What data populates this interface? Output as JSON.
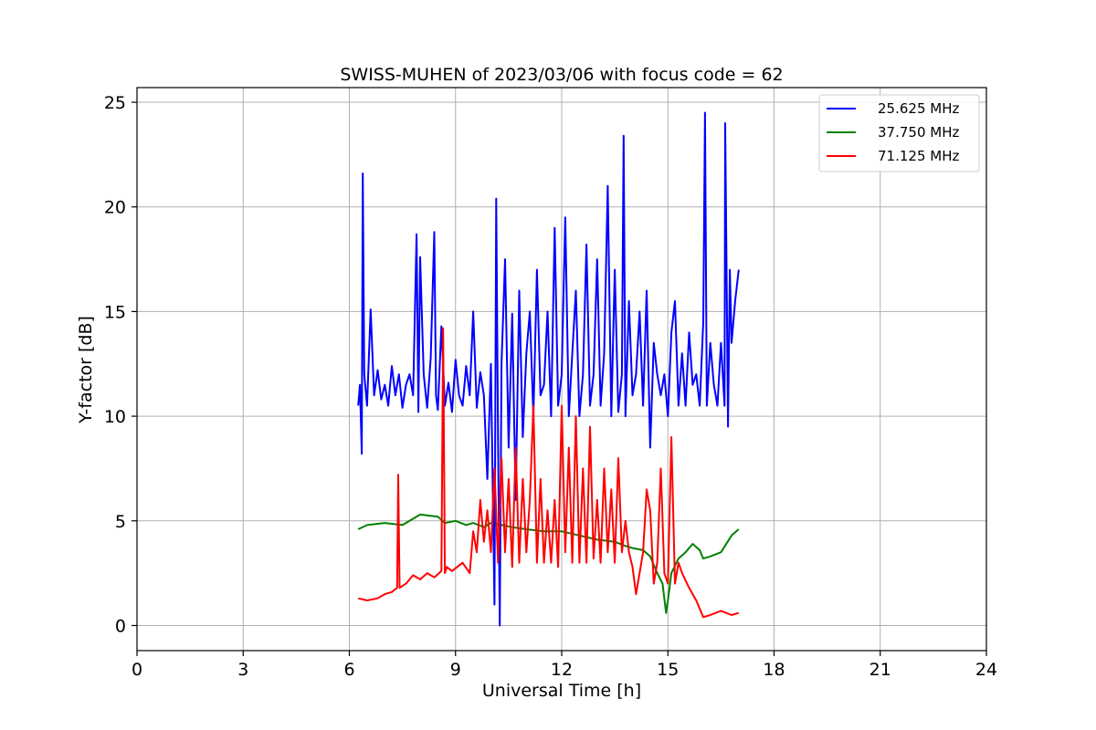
{
  "chart_data": {
    "type": "line",
    "title": "SWISS-MUHEN of 2023/03/06 with focus code = 62",
    "xlabel": "Universal Time [h]",
    "ylabel": "Y-factor [dB]",
    "xlim": [
      0,
      24
    ],
    "ylim": [
      -1.2,
      25.7
    ],
    "xticks": [
      0,
      3,
      6,
      9,
      12,
      15,
      18,
      21,
      24
    ],
    "yticks": [
      0,
      5,
      10,
      15,
      20,
      25
    ],
    "grid": true,
    "legend_position": "top-right",
    "series": [
      {
        "name": "25.625 MHz",
        "color": "#0000ff",
        "x": [
          6.25,
          6.3,
          6.35,
          6.38,
          6.42,
          6.5,
          6.6,
          6.7,
          6.8,
          6.9,
          7.0,
          7.1,
          7.2,
          7.3,
          7.4,
          7.5,
          7.6,
          7.7,
          7.8,
          7.9,
          7.95,
          8.0,
          8.1,
          8.2,
          8.3,
          8.4,
          8.45,
          8.5,
          8.6,
          8.7,
          8.8,
          8.9,
          9.0,
          9.1,
          9.2,
          9.3,
          9.4,
          9.5,
          9.6,
          9.7,
          9.8,
          9.9,
          10.0,
          10.1,
          10.15,
          10.2,
          10.25,
          10.3,
          10.4,
          10.5,
          10.6,
          10.7,
          10.8,
          10.9,
          11.0,
          11.1,
          11.2,
          11.3,
          11.4,
          11.5,
          11.6,
          11.7,
          11.8,
          11.9,
          12.0,
          12.1,
          12.2,
          12.3,
          12.4,
          12.5,
          12.6,
          12.7,
          12.8,
          12.9,
          13.0,
          13.1,
          13.2,
          13.3,
          13.4,
          13.5,
          13.6,
          13.7,
          13.75,
          13.8,
          13.9,
          14.0,
          14.1,
          14.2,
          14.3,
          14.4,
          14.5,
          14.6,
          14.7,
          14.8,
          14.9,
          15.0,
          15.1,
          15.2,
          15.3,
          15.4,
          15.5,
          15.6,
          15.7,
          15.8,
          15.9,
          16.0,
          16.05,
          16.1,
          16.2,
          16.3,
          16.4,
          16.5,
          16.6,
          16.62,
          16.7,
          16.75,
          16.8,
          16.9,
          17.0
        ],
        "values": [
          10.5,
          11.5,
          8.2,
          21.6,
          12.0,
          10.5,
          15.1,
          11.0,
          12.2,
          10.8,
          11.5,
          10.5,
          12.4,
          11.0,
          12.0,
          10.4,
          11.5,
          12.0,
          11.0,
          18.7,
          10.2,
          17.6,
          12.0,
          10.4,
          12.8,
          18.8,
          11.0,
          10.3,
          14.3,
          10.5,
          11.6,
          10.2,
          12.7,
          11.0,
          10.5,
          12.4,
          11.0,
          15.0,
          10.4,
          12.1,
          11.0,
          7.0,
          12.5,
          1.0,
          20.4,
          9.0,
          0.0,
          12.5,
          17.5,
          8.5,
          14.9,
          6.0,
          16.0,
          9.0,
          13.0,
          15.0,
          10.0,
          17.0,
          11.0,
          11.5,
          15.0,
          10.0,
          19.0,
          10.5,
          12.0,
          19.5,
          10.0,
          13.0,
          16.0,
          10.0,
          12.0,
          18.2,
          10.5,
          12.0,
          17.5,
          10.5,
          13.0,
          21.0,
          10.0,
          17.0,
          10.2,
          12.0,
          23.4,
          10.0,
          15.5,
          11.0,
          12.0,
          15.0,
          10.5,
          16.0,
          8.5,
          13.5,
          12.0,
          11.0,
          12.0,
          10.0,
          14.0,
          15.5,
          10.5,
          13.0,
          10.5,
          14.0,
          11.5,
          12.0,
          10.5,
          14.5,
          24.5,
          10.5,
          13.5,
          11.5,
          10.5,
          13.5,
          10.5,
          24.0,
          9.5,
          17.0,
          13.5,
          15.5,
          17.0
        ]
      },
      {
        "name": "37.750 MHz",
        "color": "#008000",
        "x": [
          6.25,
          6.5,
          7.0,
          7.5,
          8.0,
          8.5,
          8.7,
          9.0,
          9.3,
          9.5,
          9.8,
          10.0,
          10.3,
          10.6,
          11.0,
          11.5,
          12.0,
          12.5,
          13.0,
          13.5,
          13.8,
          14.0,
          14.3,
          14.5,
          14.7,
          14.85,
          14.95,
          15.0,
          15.1,
          15.3,
          15.5,
          15.7,
          15.9,
          16.0,
          16.2,
          16.5,
          16.8,
          17.0
        ],
        "values": [
          4.6,
          4.8,
          4.9,
          4.8,
          5.3,
          5.2,
          4.9,
          5.0,
          4.8,
          4.9,
          4.7,
          4.9,
          4.8,
          4.7,
          4.6,
          4.5,
          4.5,
          4.3,
          4.1,
          4.0,
          3.8,
          3.7,
          3.6,
          3.3,
          2.5,
          2.0,
          0.6,
          1.2,
          2.5,
          3.2,
          3.5,
          3.9,
          3.6,
          3.2,
          3.3,
          3.5,
          4.3,
          4.6
        ]
      },
      {
        "name": "71.125 MHz",
        "color": "#ff0000",
        "x": [
          6.25,
          6.5,
          6.8,
          7.0,
          7.2,
          7.35,
          7.38,
          7.42,
          7.6,
          7.8,
          8.0,
          8.2,
          8.4,
          8.6,
          8.65,
          8.7,
          8.75,
          8.9,
          9.2,
          9.4,
          9.5,
          9.6,
          9.7,
          9.8,
          9.9,
          10.0,
          10.1,
          10.2,
          10.3,
          10.4,
          10.5,
          10.6,
          10.7,
          10.8,
          10.9,
          11.0,
          11.1,
          11.2,
          11.3,
          11.4,
          11.5,
          11.6,
          11.7,
          11.8,
          11.9,
          12.0,
          12.1,
          12.2,
          12.3,
          12.4,
          12.5,
          12.6,
          12.7,
          12.8,
          12.9,
          13.0,
          13.1,
          13.2,
          13.3,
          13.4,
          13.5,
          13.6,
          13.7,
          13.8,
          13.9,
          14.0,
          14.1,
          14.2,
          14.3,
          14.4,
          14.5,
          14.6,
          14.7,
          14.8,
          14.9,
          15.0,
          15.1,
          15.2,
          15.3,
          15.4,
          15.6,
          15.8,
          16.0,
          16.2,
          16.5,
          16.8,
          17.0
        ],
        "values": [
          1.3,
          1.2,
          1.3,
          1.5,
          1.6,
          1.8,
          7.2,
          1.8,
          2.0,
          2.4,
          2.2,
          2.5,
          2.3,
          2.6,
          14.2,
          2.5,
          2.8,
          2.6,
          3.0,
          2.5,
          4.5,
          3.5,
          6.0,
          4.0,
          5.5,
          3.5,
          7.5,
          3.0,
          8.0,
          3.5,
          7.0,
          2.8,
          8.5,
          3.0,
          7.0,
          3.5,
          6.0,
          10.5,
          3.0,
          7.0,
          3.0,
          5.5,
          3.0,
          6.0,
          2.8,
          10.5,
          3.5,
          8.5,
          3.0,
          10.0,
          3.0,
          7.5,
          3.0,
          9.5,
          3.2,
          6.0,
          3.0,
          7.5,
          3.5,
          6.5,
          3.0,
          8.0,
          3.5,
          5.0,
          3.5,
          2.8,
          1.5,
          2.5,
          3.5,
          6.5,
          5.5,
          2.0,
          3.0,
          7.5,
          2.5,
          2.0,
          9.0,
          2.0,
          3.0,
          2.5,
          1.8,
          1.2,
          0.4,
          0.5,
          0.7,
          0.5,
          0.6
        ]
      }
    ]
  }
}
